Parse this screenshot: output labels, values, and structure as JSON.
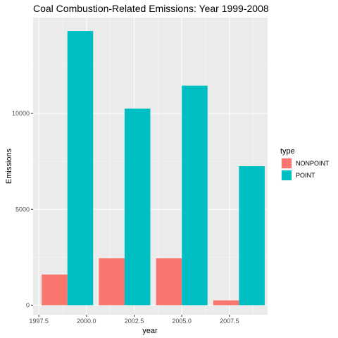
{
  "chart_data": {
    "type": "bar",
    "title": "Coal Combustion-Related Emissions: Year 1999-2008",
    "xlabel": "year",
    "ylabel": "Emissions",
    "x": [
      1999,
      2002,
      2005,
      2008
    ],
    "series": [
      {
        "name": "NONPOINT",
        "color": "#F8766D",
        "values": [
          1600,
          2450,
          2450,
          250
        ]
      },
      {
        "name": "POINT",
        "color": "#00BFC4",
        "values": [
          14300,
          10250,
          11450,
          7250
        ]
      }
    ],
    "xlim": [
      1997.2,
      2009.5
    ],
    "ylim": [
      -500,
      15000
    ],
    "x_ticks": [
      1997.5,
      2000.0,
      2002.5,
      2005.0,
      2007.5
    ],
    "x_tick_labels": [
      "1997.5",
      "2000.0",
      "2002.5",
      "2005.0",
      "2007.5"
    ],
    "y_ticks": [
      0,
      5000,
      10000
    ],
    "y_tick_labels": [
      "0",
      "5000",
      "10000"
    ],
    "legend": {
      "title": "type",
      "position": "right"
    },
    "grid": true,
    "panel_background": "#EBEBEB"
  }
}
